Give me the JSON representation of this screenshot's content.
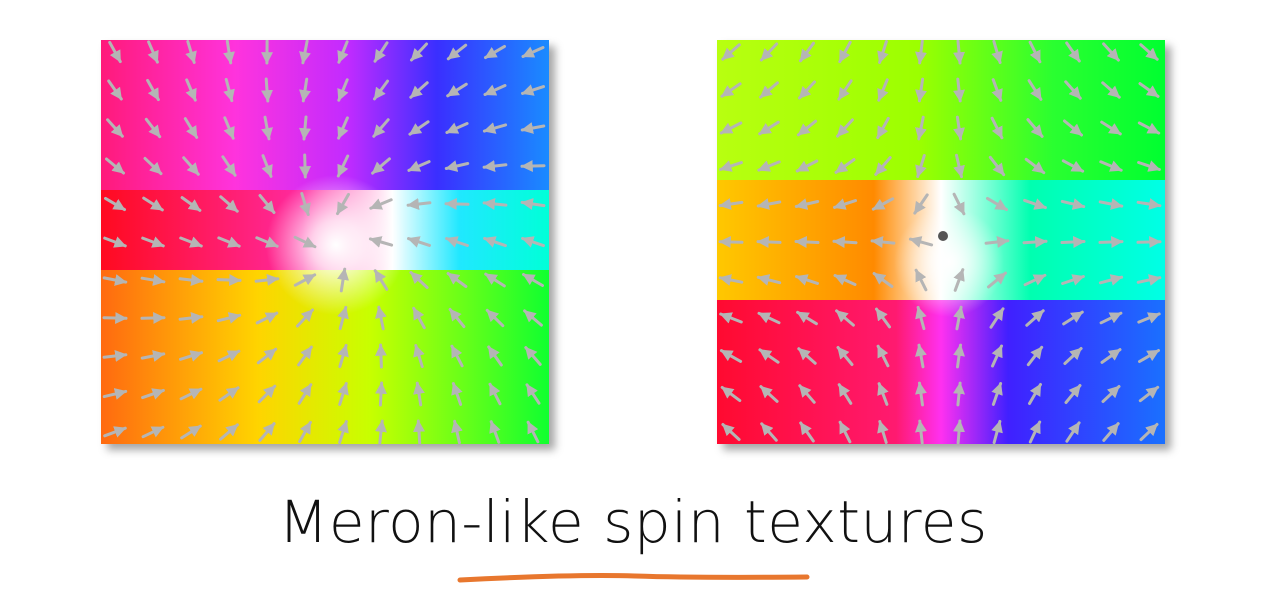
{
  "caption": {
    "text": "Meron-like spin textures",
    "underline_color": "#e8772e"
  },
  "panels": [
    {
      "name": "left-meron-panel",
      "texture": "vortex with spins converging to white core",
      "colormap": "hue wheel (red, magenta, blue, cyan, green, yellow)",
      "arrow_color": "#b8b8b8"
    },
    {
      "name": "right-meron-panel",
      "texture": "meron with off-center white core and saddle-like winding",
      "colormap": "hue wheel (yellow, green, cyan, blue, magenta, red)",
      "arrow_color": "#b8b8b8"
    }
  ]
}
